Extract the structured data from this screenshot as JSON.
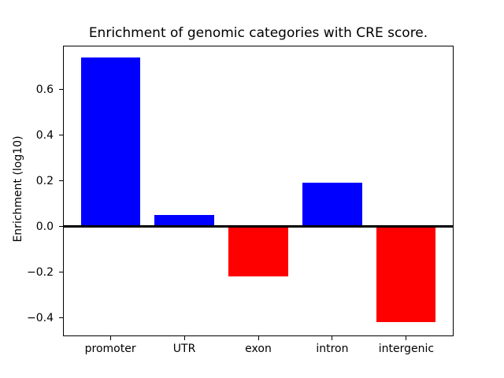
{
  "chart_data": {
    "type": "bar",
    "title": "Enrichment of genomic categories with CRE score.",
    "ylabel": "Enrichment (log10)",
    "xlabel": "",
    "categories": [
      "promoter",
      "UTR",
      "exon",
      "intron",
      "intergenic"
    ],
    "values": [
      0.74,
      0.05,
      -0.22,
      0.19,
      -0.42
    ],
    "bar_width_fraction": 0.8,
    "xlim": [
      -0.64,
      4.64
    ],
    "ylim": [
      -0.4817,
      0.7928
    ],
    "yticks": [
      {
        "label": "0.6",
        "value": 0.6
      },
      {
        "label": "0.4",
        "value": 0.4
      },
      {
        "label": "0.2",
        "value": 0.2
      },
      {
        "label": "0.0",
        "value": 0.0
      },
      {
        "label": "−0.2",
        "value": -0.2
      },
      {
        "label": "−0.4",
        "value": -0.4
      }
    ],
    "grid": false,
    "legend": null,
    "zero_line": true,
    "colors": {
      "positive_bar": "#0000ff",
      "negative_bar": "#ff0000",
      "zero_line": "#000000",
      "axes": "#000000",
      "text": "#000000",
      "background": "#ffffff"
    }
  }
}
